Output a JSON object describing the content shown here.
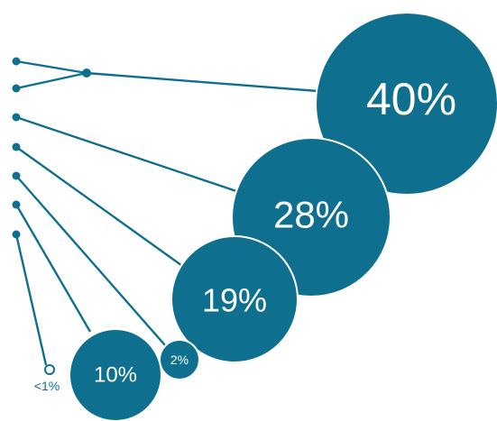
{
  "chart_data": {
    "type": "bubble",
    "title": "",
    "values": [
      "40%",
      "28%",
      "19%",
      "2%",
      "10%",
      "<1%"
    ],
    "series": [
      {
        "label": "40%",
        "value": 40
      },
      {
        "label": "28%",
        "value": 28
      },
      {
        "label": "19%",
        "value": 19
      },
      {
        "label": "2%",
        "value": 2
      },
      {
        "label": "10%",
        "value": 10
      },
      {
        "label": "<1%",
        "value": 0.5
      }
    ],
    "colors": {
      "bubble": "#0e6f8f",
      "line": "#0e6f8f",
      "background": "#ffffff"
    }
  }
}
